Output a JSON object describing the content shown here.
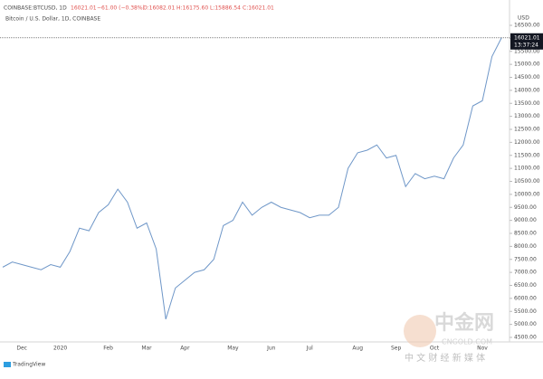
{
  "chart_data": {
    "type": "line",
    "header": {
      "symbol": "COINBASE:BTCUSD, 1D",
      "change": "−61.00 (−0.38%)",
      "open": "O:16082.01",
      "high": "H:16175.60",
      "low": "L:15886.54",
      "close": "C:16021.01"
    },
    "title": "Bitcoin / U.S. Dollar, 1D, COINBASE",
    "currency": "USD",
    "countdown": "13:37:24",
    "categories": [
      null,
      null,
      "Dec",
      null,
      null,
      null,
      "2020",
      null,
      null,
      null,
      null,
      "Feb",
      null,
      null,
      null,
      "Mar",
      null,
      null,
      null,
      "Apr",
      null,
      null,
      null,
      null,
      "May",
      null,
      null,
      null,
      "Jun",
      null,
      null,
      null,
      "Jul",
      null,
      null,
      null,
      null,
      "Aug",
      null,
      null,
      null,
      "Sep",
      null,
      null,
      null,
      "Oct",
      null,
      null,
      null,
      null,
      "Nov",
      null,
      null
    ],
    "series": [
      {
        "name": "BTCUSD",
        "color": "#6f97c8",
        "values": [
          7200,
          7400,
          7300,
          7200,
          7100,
          7300,
          7200,
          7800,
          8700,
          8600,
          9300,
          9600,
          10200,
          9700,
          8700,
          8900,
          7900,
          5200,
          6400,
          6700,
          7000,
          7100,
          7500,
          8800,
          9000,
          9700,
          9200,
          9500,
          9700,
          9500,
          9400,
          9300,
          9100,
          9200,
          9200,
          9500,
          11000,
          11600,
          11700,
          11900,
          11400,
          11500,
          10300,
          10800,
          10600,
          10700,
          10600,
          11400,
          11900,
          13400,
          13600,
          15300,
          16021.01
        ]
      }
    ],
    "ylim": [
      4500,
      16500
    ],
    "yticks": [
      {
        "value": 4500,
        "label": "4500.00"
      },
      {
        "value": 5000,
        "label": "5000.00"
      },
      {
        "value": 5500,
        "label": "5500.00"
      },
      {
        "value": 6000,
        "label": "6000.00"
      },
      {
        "value": 6500,
        "label": "6500.00"
      },
      {
        "value": 7000,
        "label": "7000.00"
      },
      {
        "value": 7500,
        "label": "7500.00"
      },
      {
        "value": 8000,
        "label": "8000.00"
      },
      {
        "value": 8500,
        "label": "8500.00"
      },
      {
        "value": 9000,
        "label": "9000.00"
      },
      {
        "value": 9500,
        "label": "9500.00"
      },
      {
        "value": 10000,
        "label": "10000.00"
      },
      {
        "value": 10500,
        "label": "10500.00"
      },
      {
        "value": 11000,
        "label": "11000.00"
      },
      {
        "value": 11500,
        "label": "11500.00"
      },
      {
        "value": 12000,
        "label": "12000.00"
      },
      {
        "value": 12500,
        "label": "12500.00"
      },
      {
        "value": 13000,
        "label": "13000.00"
      },
      {
        "value": 13500,
        "label": "13500.00"
      },
      {
        "value": 14000,
        "label": "14000.00"
      },
      {
        "value": 14500,
        "label": "14500.00"
      },
      {
        "value": 15000,
        "label": "15000.00"
      },
      {
        "value": 15500,
        "label": "15500.00"
      },
      {
        "value": 16000,
        "label": "16000.00"
      },
      {
        "value": 16500,
        "label": "16500.00"
      }
    ],
    "grid": false,
    "branding": "TradingView",
    "watermark": {
      "name": "中金网",
      "site": "CNGOLD.COM",
      "slogan": "中 文 财 经 新 媒 体"
    }
  }
}
